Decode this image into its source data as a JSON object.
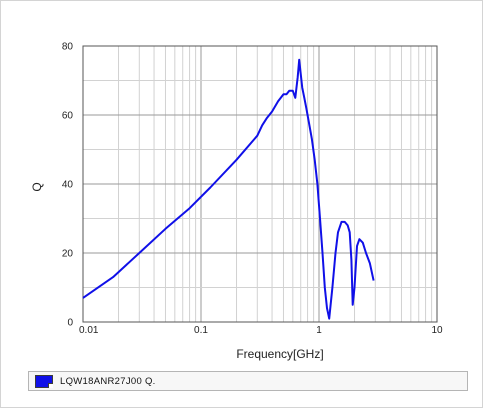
{
  "chart_data": {
    "type": "line",
    "title": "",
    "xlabel": "Frequency[GHz]",
    "ylabel": "Q",
    "x_scale": "log",
    "xlim": [
      0.01,
      10
    ],
    "ylim": [
      0,
      80
    ],
    "x_ticks": [
      0.01,
      0.1,
      1,
      10
    ],
    "x_tick_labels": [
      "0.01",
      "0.1",
      "1",
      "10"
    ],
    "y_ticks": [
      0,
      20,
      40,
      60,
      80
    ],
    "y_tick_labels": [
      "0",
      "20",
      "40",
      "60",
      "80"
    ],
    "grid": true,
    "legend_position": "bottom",
    "series": [
      {
        "name": "LQW18ANR27J00 Q.",
        "color": "#1010e8",
        "x": [
          0.01,
          0.018,
          0.03,
          0.05,
          0.08,
          0.12,
          0.2,
          0.3,
          0.33,
          0.36,
          0.4,
          0.45,
          0.5,
          0.53,
          0.56,
          0.6,
          0.63,
          0.66,
          0.68,
          0.7,
          0.72,
          0.75,
          0.78,
          0.82,
          0.87,
          0.92,
          0.97,
          1.02,
          1.07,
          1.12,
          1.17,
          1.22,
          1.3,
          1.38,
          1.45,
          1.55,
          1.65,
          1.75,
          1.82,
          1.88,
          1.93,
          2.0,
          2.1,
          2.2,
          2.35,
          2.5,
          2.7,
          2.9
        ],
        "values": [
          7,
          13,
          20,
          27,
          33,
          39,
          47,
          54,
          57,
          59,
          61,
          64,
          66,
          66,
          67,
          67,
          65,
          71,
          76,
          72,
          68,
          65,
          62,
          58,
          53,
          47,
          40,
          30,
          20,
          10,
          4,
          1,
          10,
          20,
          26,
          29,
          29,
          28,
          26,
          18,
          5,
          10,
          22,
          24,
          23,
          20,
          17,
          12
        ]
      }
    ]
  },
  "legend": {
    "label": "LQW18ANR27J00 Q."
  }
}
